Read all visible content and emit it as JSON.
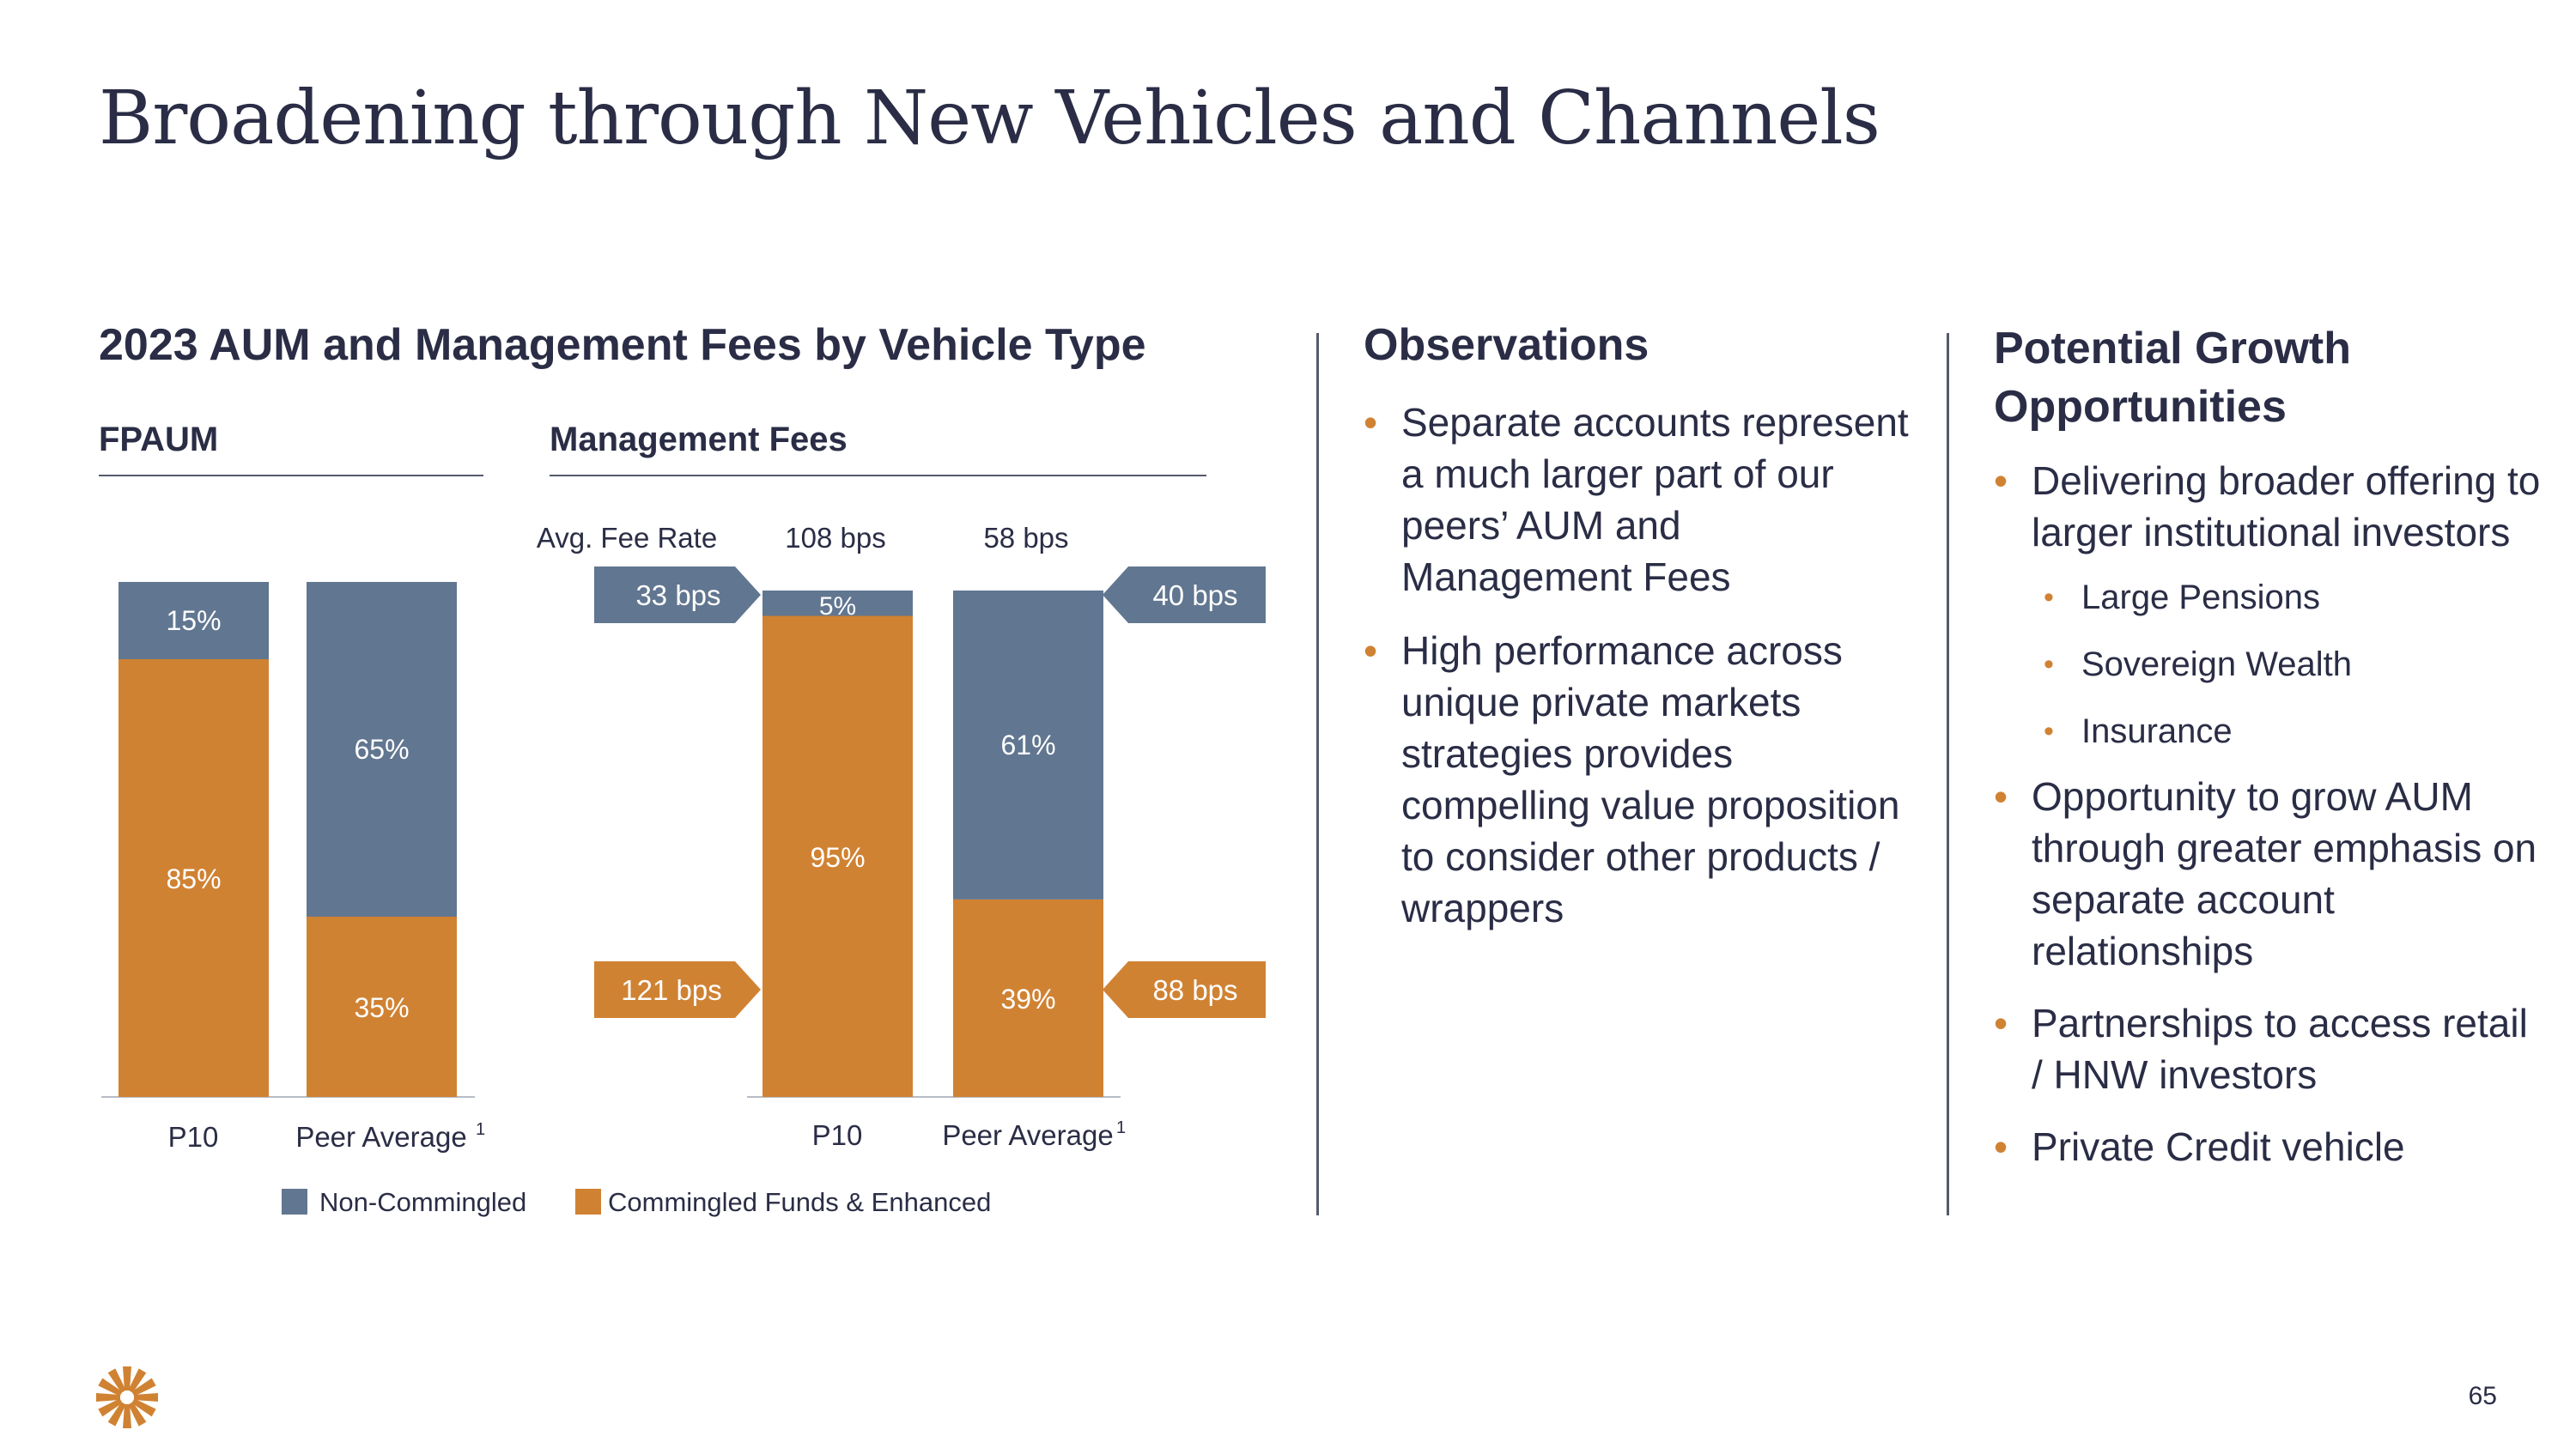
{
  "title": "Broadening through New Vehicles and Channels",
  "page_number": "65",
  "colors": {
    "non_commingled": "#617690",
    "commingled": "#d08233",
    "text": "#2a2d45",
    "accent": "#d08233"
  },
  "logo": {
    "icon": "starburst-logo-icon"
  },
  "chart_section": {
    "title": "2023 AUM and Management Fees by Vehicle Type",
    "fpaum_label": "FPAUM",
    "fees_label": "Management Fees",
    "avg_fee_rate_label": "Avg. Fee Rate"
  },
  "chart_data": [
    {
      "type": "bar",
      "stacked": true,
      "percent": true,
      "title": "FPAUM",
      "categories": [
        "P10",
        "Peer Average"
      ],
      "footnote": "1",
      "series": [
        {
          "name": "Commingled Funds & Enhanced",
          "values": [
            85,
            35
          ],
          "labels": [
            "85%",
            "35%"
          ]
        },
        {
          "name": "Non-Commingled",
          "values": [
            15,
            65
          ],
          "labels": [
            "15%",
            "65%"
          ]
        }
      ],
      "ylim": [
        0,
        100
      ]
    },
    {
      "type": "bar",
      "stacked": true,
      "percent": true,
      "title": "Management Fees",
      "categories": [
        "P10",
        "Peer Average"
      ],
      "footnote": "1",
      "avg_fee_rates": [
        "108 bps",
        "58 bps"
      ],
      "series": [
        {
          "name": "Commingled Funds & Enhanced",
          "values": [
            95,
            39
          ],
          "labels": [
            "95%",
            "39%"
          ],
          "fee_rates": [
            "121 bps",
            "88 bps"
          ]
        },
        {
          "name": "Non-Commingled",
          "values": [
            5,
            61
          ],
          "labels": [
            "5%",
            "61%"
          ],
          "fee_rates": [
            "33 bps",
            "40 bps"
          ]
        }
      ],
      "ylim": [
        0,
        100
      ]
    }
  ],
  "legend": [
    {
      "label": "Non-Commingled",
      "color": "#617690"
    },
    {
      "label": "Commingled Funds & Enhanced",
      "color": "#d08233"
    }
  ],
  "observations": {
    "title": "Observations",
    "items": [
      "Separate accounts represent a much larger part of our peers’ AUM and Management Fees",
      "High performance across unique private markets strategies provides compelling value proposition to consider other products / wrappers"
    ]
  },
  "growth": {
    "title": "Potential Growth Opportunities",
    "items": [
      "Delivering broader offering to larger institutional investors",
      "Opportunity to grow AUM through greater emphasis on separate account relationships",
      "Partnerships to access retail / HNW investors",
      "Private Credit vehicle"
    ],
    "sub_items": [
      "Large Pensions",
      "Sovereign Wealth",
      "Insurance"
    ]
  }
}
